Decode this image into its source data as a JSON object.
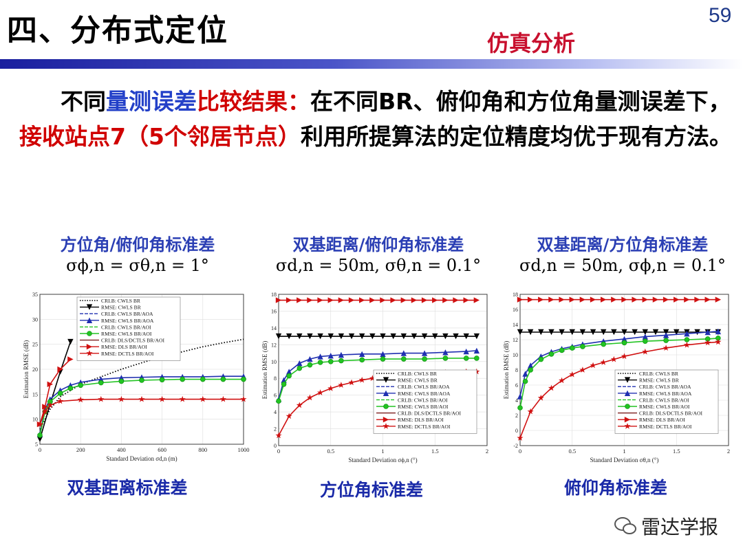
{
  "header": {
    "title": "四、分布式定位",
    "page_number": "59",
    "subtitle": "仿真分析"
  },
  "paragraph": {
    "p1": "不同",
    "p2": "量测误差",
    "p3": "比较结果：",
    "p4": "在不同BR、俯仰角和方位角量测误差下，",
    "p5": "接收站点7（5个邻居节点）",
    "p6": "利用所提算法的定位精度均优于现有方法。"
  },
  "panels": [
    {
      "caption": "方位角/俯仰角标准差",
      "formula": "σϕ,n = σθ,n = 1°",
      "bottom": "双基距离标准差"
    },
    {
      "caption": "双基距离/俯仰角标准差",
      "formula": "σd,n = 50m, σθ,n = 0.1°",
      "bottom": "方位角标准差"
    },
    {
      "caption": "双基距离/方位角标准差",
      "formula": "σd,n = 50m, σϕ,n = 0.1°",
      "bottom": "俯仰角标准差"
    }
  ],
  "chart_data": [
    {
      "type": "line",
      "ylabel": "Estimation RMSE (dB)",
      "xlabel": "Standard Deviation σd,n (m)",
      "xlim": [
        0,
        1000
      ],
      "ylim": [
        5,
        35
      ],
      "xticks": [
        "0",
        "200",
        "400",
        "600",
        "800",
        "1000"
      ],
      "yticks": [
        "5",
        "10",
        "15",
        "20",
        "25",
        "30",
        "35"
      ],
      "legend": [
        "CRLB: CWLS BR",
        "RMSE: CWLS BR",
        "CRLB: CWLS BR/AOA",
        "RMSE: CWLS BR/AOA",
        "CRLB: CWLS BR/AOI",
        "RMSE: CWLS BR/AOI",
        "CRLB: DLS/DCTLS BR/AOI",
        "RMSE: DLS BR/AOI",
        "RMSE: DCTLS BR/AOI"
      ],
      "series": [
        {
          "name": "CRLB: CWLS BR",
          "style": "dotted",
          "color": "#000000",
          "x": [
            0,
            50,
            100,
            200,
            300,
            400,
            500,
            600,
            700,
            800,
            900,
            1000
          ],
          "y": [
            8,
            12,
            14.5,
            17,
            18.5,
            20,
            21.3,
            22.5,
            23.5,
            24.5,
            25.3,
            26
          ]
        },
        {
          "name": "RMSE: CWLS BR",
          "style": "solid",
          "color": "#000000",
          "marker": "tri-down",
          "x": [
            0,
            50,
            100,
            150
          ],
          "y": [
            6,
            13,
            19.5,
            25.5
          ]
        },
        {
          "name": "RMSE: CWLS BR/AOA",
          "style": "solid",
          "color": "#1f2fb0",
          "marker": "tri-up",
          "x": [
            0,
            25,
            50,
            100,
            150,
            200,
            300,
            400,
            500,
            600,
            700,
            800,
            900,
            1000
          ],
          "y": [
            7,
            12,
            14,
            15.8,
            16.8,
            17.4,
            18,
            18.3,
            18.4,
            18.5,
            18.5,
            18.5,
            18.6,
            18.6
          ]
        },
        {
          "name": "RMSE: CWLS BR/AOI",
          "style": "solid",
          "color": "#22c422",
          "marker": "circle",
          "x": [
            0,
            25,
            50,
            100,
            150,
            200,
            300,
            400,
            500,
            600,
            700,
            800,
            900,
            1000
          ],
          "y": [
            6.8,
            11.5,
            13.5,
            15.2,
            16.2,
            16.8,
            17.3,
            17.6,
            17.8,
            17.9,
            18,
            18,
            18,
            18
          ]
        },
        {
          "name": "RMSE: DLS BR/AOI",
          "style": "solid",
          "color": "#d01010",
          "marker": "tri-right",
          "x": [
            0,
            25,
            50,
            100,
            150
          ],
          "y": [
            9,
            12.5,
            17,
            20,
            22
          ]
        },
        {
          "name": "RMSE: DCTLS BR/AOI",
          "style": "solid",
          "color": "#d01010",
          "marker": "star",
          "x": [
            0,
            25,
            50,
            100,
            200,
            300,
            400,
            500,
            600,
            700,
            800,
            900,
            1000
          ],
          "y": [
            9,
            11.5,
            12.8,
            13.6,
            13.9,
            14,
            14,
            14,
            14,
            14,
            14,
            14,
            14
          ]
        }
      ]
    },
    {
      "type": "line",
      "ylabel": "Estimation RMSE (dB)",
      "xlabel": "Standard Deviation σϕ,n (°)",
      "xlim": [
        0,
        2
      ],
      "ylim": [
        0,
        18
      ],
      "xticks": [
        "0",
        "0.5",
        "1",
        "1.5",
        "2"
      ],
      "yticks": [
        "0",
        "2",
        "4",
        "6",
        "8",
        "10",
        "12",
        "14",
        "16",
        "18"
      ],
      "legend": [
        "CRLB: CWLS BR",
        "RMSE: CWLS BR",
        "CRLB: CWLS BR/AOA",
        "RMSE: CWLS BR/AOA",
        "CRLB: CWLS BR/AOI",
        "RMSE: CWLS BR/AOI",
        "CRLB: DLS/DCTLS BR/AOI",
        "RMSE: DLS BR/AOI",
        "RMSE: DCTLS BR/AOI"
      ],
      "series": [
        {
          "name": "RMSE: DLS BR/AOI",
          "style": "solid",
          "color": "#d01010",
          "marker": "tri-right",
          "x": [
            0,
            0.1,
            0.2,
            0.3,
            0.4,
            0.5,
            0.6,
            0.7,
            0.8,
            0.9,
            1,
            1.1,
            1.2,
            1.3,
            1.4,
            1.5,
            1.6,
            1.7,
            1.8,
            1.9
          ],
          "y": [
            17.3,
            17.3,
            17.3,
            17.3,
            17.3,
            17.3,
            17.3,
            17.3,
            17.3,
            17.3,
            17.3,
            17.3,
            17.3,
            17.3,
            17.3,
            17.3,
            17.3,
            17.3,
            17.3,
            17.3
          ]
        },
        {
          "name": "RMSE: CWLS BR",
          "style": "solid",
          "color": "#000000",
          "marker": "tri-down",
          "x": [
            0,
            0.1,
            0.2,
            0.3,
            0.4,
            0.5,
            0.6,
            0.7,
            0.8,
            0.9,
            1,
            1.1,
            1.2,
            1.3,
            1.4,
            1.5,
            1.6,
            1.7,
            1.8,
            1.9
          ],
          "y": [
            13,
            13,
            13,
            13,
            13,
            13,
            13,
            13,
            13,
            13,
            13,
            13,
            13,
            13,
            13,
            13,
            13,
            13,
            13,
            13
          ]
        },
        {
          "name": "RMSE: CWLS BR/AOA",
          "style": "solid",
          "color": "#1f2fb0",
          "marker": "tri-up",
          "x": [
            0,
            0.05,
            0.1,
            0.2,
            0.3,
            0.4,
            0.5,
            0.6,
            0.8,
            1,
            1.2,
            1.4,
            1.6,
            1.8,
            1.9
          ],
          "y": [
            5.5,
            7.8,
            8.8,
            9.8,
            10.3,
            10.6,
            10.7,
            10.8,
            10.9,
            10.9,
            11,
            11,
            11.1,
            11.2,
            11.3
          ]
        },
        {
          "name": "RMSE: CWLS BR/AOI",
          "style": "solid",
          "color": "#22c422",
          "marker": "circle",
          "x": [
            0,
            0.05,
            0.1,
            0.2,
            0.3,
            0.4,
            0.5,
            0.6,
            0.8,
            1,
            1.2,
            1.4,
            1.6,
            1.8,
            1.9
          ],
          "y": [
            5.3,
            7.3,
            8.3,
            9.2,
            9.6,
            9.9,
            10,
            10.1,
            10.2,
            10.3,
            10.3,
            10.3,
            10.4,
            10.4,
            10.4
          ]
        },
        {
          "name": "RMSE: DCTLS BR/AOI",
          "style": "solid",
          "color": "#d01010",
          "marker": "star",
          "x": [
            0,
            0.1,
            0.2,
            0.3,
            0.4,
            0.5,
            0.6,
            0.7,
            0.8,
            0.9,
            1,
            1.2,
            1.4,
            1.6,
            1.8,
            1.9
          ],
          "y": [
            1.2,
            3.5,
            4.8,
            5.7,
            6.3,
            6.8,
            7.2,
            7.5,
            7.8,
            8,
            8.2,
            8.4,
            8.6,
            8.7,
            8.8,
            8.8
          ]
        }
      ]
    },
    {
      "type": "line",
      "ylabel": "Estimation RMSE (dB)",
      "xlabel": "Standard Deviation σθ,n (°)",
      "xlim": [
        0,
        2
      ],
      "ylim": [
        -2,
        18
      ],
      "xticks": [
        "0",
        "0.5",
        "1",
        "1.5",
        "2"
      ],
      "yticks": [
        "-2",
        "0",
        "2",
        "4",
        "6",
        "8",
        "10",
        "12",
        "14",
        "16",
        "18"
      ],
      "legend": [
        "CRLB: CWLS BR",
        "RMSE: CWLS BR",
        "CRLB: CWLS BR/AOA",
        "RMSE: CWLS BR/AOA",
        "CRLB: CWLS BR/AOI",
        "RMSE: CWLS BR/AOI",
        "CRLB: DLS/DCTLS BR/AOI",
        "RMSE: DLS BR/AOI",
        "RMSE: DCTLS BR/AOI"
      ],
      "series": [
        {
          "name": "RMSE: DLS BR/AOI",
          "style": "solid",
          "color": "#d01010",
          "marker": "tri-right",
          "x": [
            0,
            0.1,
            0.2,
            0.3,
            0.4,
            0.5,
            0.6,
            0.7,
            0.8,
            0.9,
            1,
            1.1,
            1.2,
            1.3,
            1.4,
            1.5,
            1.6,
            1.7,
            1.8,
            1.9
          ],
          "y": [
            17.3,
            17.3,
            17.3,
            17.3,
            17.3,
            17.3,
            17.3,
            17.3,
            17.3,
            17.3,
            17.3,
            17.3,
            17.3,
            17.3,
            17.3,
            17.3,
            17.3,
            17.3,
            17.3,
            17.3
          ]
        },
        {
          "name": "RMSE: CWLS BR",
          "style": "solid",
          "color": "#000000",
          "marker": "tri-down",
          "x": [
            0,
            0.1,
            0.2,
            0.3,
            0.4,
            0.5,
            0.6,
            0.7,
            0.8,
            0.9,
            1,
            1.1,
            1.2,
            1.3,
            1.4,
            1.5,
            1.6,
            1.7,
            1.8,
            1.9
          ],
          "y": [
            13,
            13,
            13,
            13,
            13,
            13,
            13,
            13,
            13,
            13,
            13,
            13,
            13,
            13,
            13,
            13,
            13,
            13,
            13,
            13
          ]
        },
        {
          "name": "RMSE: CWLS BR/AOA",
          "style": "solid",
          "color": "#1f2fb0",
          "marker": "tri-up",
          "x": [
            0,
            0.05,
            0.1,
            0.2,
            0.3,
            0.4,
            0.5,
            0.6,
            0.8,
            1,
            1.2,
            1.4,
            1.6,
            1.8,
            1.9
          ],
          "y": [
            4.5,
            7.5,
            8.6,
            9.8,
            10.4,
            10.8,
            11.1,
            11.4,
            11.8,
            12.1,
            12.4,
            12.6,
            12.8,
            13,
            13.1
          ]
        },
        {
          "name": "RMSE: CWLS BR/AOI",
          "style": "solid",
          "color": "#22c422",
          "marker": "circle",
          "x": [
            0,
            0.05,
            0.1,
            0.2,
            0.3,
            0.4,
            0.5,
            0.6,
            0.8,
            1,
            1.2,
            1.4,
            1.6,
            1.8,
            1.9
          ],
          "y": [
            3,
            6.5,
            8,
            9.4,
            10.1,
            10.6,
            10.9,
            11.1,
            11.4,
            11.6,
            11.8,
            11.9,
            12,
            12.1,
            12.2
          ]
        },
        {
          "name": "RMSE: DCTLS BR/AOI",
          "style": "solid",
          "color": "#d01010",
          "marker": "star",
          "x": [
            0,
            0.1,
            0.2,
            0.3,
            0.4,
            0.5,
            0.6,
            0.7,
            0.8,
            0.9,
            1,
            1.2,
            1.4,
            1.6,
            1.8,
            1.9
          ],
          "y": [
            -1,
            2.5,
            4.3,
            5.6,
            6.6,
            7.4,
            8,
            8.6,
            9,
            9.4,
            9.8,
            10.4,
            10.9,
            11.3,
            11.6,
            11.7
          ]
        }
      ]
    }
  ],
  "watermark": "雷达学报"
}
